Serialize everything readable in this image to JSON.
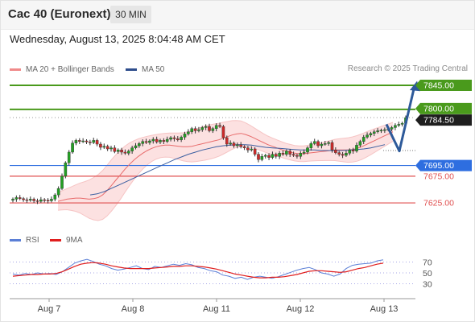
{
  "header": {
    "title": "Cac 40 (Euronext)",
    "timeframe": "30 MIN"
  },
  "timestamp": "Wednesday, August 13, 2025 8:04:48 AM CET",
  "credit": "Research © 2025 Trading Central",
  "legend": [
    {
      "label": "MA 20 + Bollinger Bands",
      "color": "#f08a8a"
    },
    {
      "label": "MA 50",
      "color": "#2e4d8c"
    }
  ],
  "rsi_legend": [
    {
      "label": "RSI",
      "color": "#5b7fd6"
    },
    {
      "label": "9MA",
      "color": "#e01e1e"
    }
  ],
  "colors": {
    "up_candle": "#22a022",
    "down_candle": "#cc2a2a",
    "resistance": "#4a9a1c",
    "pivot": "#2e6ee0",
    "support": "#e05050",
    "last": "#1e1e1e",
    "scenario_arrow": "#2e5a9a",
    "bb_fill": "#fce1e1"
  },
  "chart_data": [
    {
      "type": "line",
      "title": "Cac 40 (Euronext)",
      "timeframe": "30 MIN",
      "x_tick_labels": [
        "Aug 7",
        "Aug 8",
        "Aug 11",
        "Aug 12",
        "Aug 13"
      ],
      "y_range": [
        7595,
        7860
      ],
      "levels": [
        {
          "value": 7845.0,
          "label": "7845.00",
          "kind": "resistance"
        },
        {
          "value": 7800.0,
          "label": "7800.00",
          "kind": "resistance"
        },
        {
          "value": 7784.5,
          "label": "7784.50",
          "kind": "last"
        },
        {
          "value": 7695.0,
          "label": "7695.00",
          "kind": "pivot"
        },
        {
          "value": 7675.0,
          "label": "7675.00",
          "kind": "support"
        },
        {
          "value": 7625.0,
          "label": "7625.00",
          "kind": "support"
        }
      ],
      "series": [
        {
          "name": "Cac 40 (Euronext)",
          "values": [
            7632,
            7635,
            7633,
            7631,
            7630,
            7632,
            7629,
            7628,
            7631,
            7630,
            7629,
            7632,
            7640,
            7652,
            7675,
            7700,
            7720,
            7737,
            7742,
            7740,
            7741,
            7739,
            7738,
            7742,
            7735,
            7729,
            7731,
            7726,
            7728,
            7721,
            7724,
            7720,
            7718,
            7722,
            7728,
            7732,
            7736,
            7740,
            7738,
            7741,
            7744,
            7739,
            7742,
            7740,
            7744,
            7747,
            7745,
            7743,
            7748,
            7754,
            7758,
            7764,
            7760,
            7762,
            7766,
            7768,
            7760,
            7764,
            7770,
            7768,
            7747,
            7735,
            7737,
            7732,
            7734,
            7730,
            7728,
            7724,
            7726,
            7716,
            7706,
            7712,
            7714,
            7710,
            7716,
            7712,
            7718,
            7716,
            7722,
            7716,
            7714,
            7712,
            7718,
            7720,
            7728,
            7736,
            7740,
            7732,
            7735,
            7736,
            7738,
            7724,
            7719,
            7716,
            7714,
            7718,
            7724,
            7722,
            7733,
            7740,
            7748,
            7752,
            7755,
            7758,
            7760,
            7761,
            7762,
            7763,
            7766,
            7770,
            7772,
            7774,
            7784.5
          ]
        },
        {
          "name": "MA 20",
          "values": [
            7628,
            7630,
            7632,
            7633,
            7634,
            7634,
            7633,
            7632,
            7633,
            7635,
            7640,
            7648,
            7658,
            7668,
            7678,
            7688,
            7697,
            7705,
            7712,
            7718,
            7723,
            7727,
            7730,
            7732,
            7733,
            7733,
            7732,
            7731,
            7730,
            7730,
            7731,
            7733,
            7735,
            7737,
            7739,
            7741,
            7743,
            7746,
            7749,
            7752,
            7754,
            7755,
            7753,
            7750,
            7746,
            7742,
            7738,
            7734,
            7731,
            7728,
            7725,
            7722,
            7720,
            7718,
            7717,
            7717,
            7718,
            7719,
            7720,
            7721,
            7722,
            7723,
            7724,
            7724,
            7724,
            7724,
            7725,
            7727,
            7730,
            7734,
            7738,
            7742,
            7746,
            7750,
            7754,
            7758
          ]
        },
        {
          "name": "MA 50",
          "values": [
            7640,
            7642,
            7646,
            7652,
            7658,
            7664,
            7670,
            7676,
            7682,
            7688,
            7694,
            7700,
            7706,
            7711,
            7716,
            7720,
            7724,
            7727,
            7730,
            7732,
            7733,
            7734,
            7734,
            7733,
            7731,
            7729,
            7728,
            7727,
            7726,
            7725,
            7724,
            7724,
            7724,
            7723,
            7723,
            7723,
            7723,
            7724,
            7725,
            7726,
            7728,
            7731,
            7734
          ]
        },
        {
          "name": "RSI",
          "values": [
            48,
            46,
            49,
            47,
            50,
            48,
            49,
            47,
            52,
            60,
            68,
            72,
            75,
            71,
            66,
            63,
            58,
            55,
            57,
            60,
            63,
            58,
            56,
            62,
            60,
            63,
            66,
            64,
            67,
            65,
            60,
            58,
            54,
            52,
            46,
            44,
            40,
            42,
            38,
            42,
            44,
            42,
            40,
            43,
            47,
            51,
            55,
            58,
            60,
            56,
            50,
            48,
            44,
            48,
            58,
            64,
            66,
            67,
            68,
            72,
            74
          ]
        },
        {
          "name": "9MA",
          "values": [
            44,
            45,
            46,
            47,
            47,
            48,
            48,
            49,
            52,
            57,
            62,
            66,
            68,
            69,
            68,
            66,
            63,
            61,
            59,
            58,
            58,
            58,
            58,
            59,
            60,
            61,
            62,
            62,
            63,
            63,
            62,
            61,
            59,
            57,
            54,
            51,
            48,
            46,
            44,
            42,
            41,
            41,
            42,
            42,
            43,
            45,
            47,
            50,
            53,
            54,
            54,
            53,
            52,
            51,
            52,
            55,
            58,
            60,
            63,
            66,
            68
          ]
        }
      ],
      "rsi_levels": [
        70,
        50,
        30
      ],
      "scenario": "dip toward 7750 then rally through 7800 to 7845"
    }
  ]
}
